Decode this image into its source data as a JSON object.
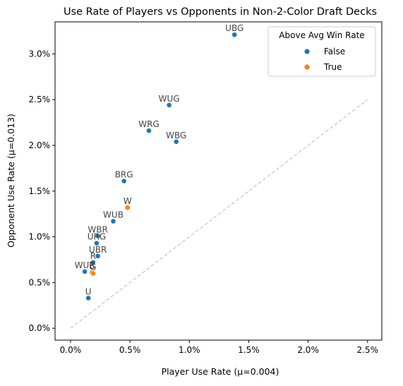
{
  "chart_data": {
    "type": "scatter",
    "title": "Use Rate of Players vs Opponents in Non-2-Color Draft Decks",
    "xlabel": "Player Use Rate (μ=0.004)",
    "ylabel": "Opponent Use Rate (μ=0.013)",
    "xlim": [
      -0.0013,
      0.0262
    ],
    "ylim": [
      -0.0013,
      0.0335
    ],
    "x_ticks": [
      0.0,
      0.005,
      0.01,
      0.015,
      0.02,
      0.025
    ],
    "x_tick_labels": [
      "0.0%",
      "0.5%",
      "1.0%",
      "1.5%",
      "2.0%",
      "2.5%"
    ],
    "y_ticks": [
      0.0,
      0.005,
      0.01,
      0.015,
      0.02,
      0.025,
      0.03
    ],
    "y_tick_labels": [
      "0.0%",
      "0.5%",
      "1.0%",
      "1.5%",
      "2.0%",
      "2.5%",
      "3.0%"
    ],
    "reference_line": {
      "x": [
        0.0,
        0.025
      ],
      "y": [
        0.0,
        0.025
      ],
      "style": "dashed",
      "color": "#bbbbbb"
    },
    "legend": {
      "title": "Above Avg Win Rate",
      "placement": "top-right",
      "entries": [
        {
          "label": "False",
          "color": "#1f77b4"
        },
        {
          "label": "True",
          "color": "#ff7f0e"
        }
      ]
    },
    "points": [
      {
        "label": "UBG",
        "x": 0.0138,
        "y": 0.0321,
        "above_avg": false
      },
      {
        "label": "WUG",
        "x": 0.0083,
        "y": 0.0244,
        "above_avg": false
      },
      {
        "label": "WRG",
        "x": 0.0066,
        "y": 0.0216,
        "above_avg": false
      },
      {
        "label": "WBG",
        "x": 0.0089,
        "y": 0.0204,
        "above_avg": false
      },
      {
        "label": "BRG",
        "x": 0.0045,
        "y": 0.0161,
        "above_avg": false
      },
      {
        "label": "W",
        "x": 0.0048,
        "y": 0.0132,
        "above_avg": true
      },
      {
        "label": "WUB",
        "x": 0.0036,
        "y": 0.0117,
        "above_avg": false
      },
      {
        "label": "WBR",
        "x": 0.0023,
        "y": 0.0101,
        "above_avg": false
      },
      {
        "label": "URG",
        "x": 0.0022,
        "y": 0.0093,
        "above_avg": false
      },
      {
        "label": "UBR",
        "x": 0.0023,
        "y": 0.0079,
        "above_avg": false
      },
      {
        "label": "R",
        "x": 0.0019,
        "y": 0.0072,
        "above_avg": false
      },
      {
        "label": "WUR",
        "x": 0.0012,
        "y": 0.0062,
        "above_avg": false
      },
      {
        "label": "B",
        "x": 0.0018,
        "y": 0.0061,
        "above_avg": true
      },
      {
        "label": "G",
        "x": 0.0019,
        "y": 0.006,
        "above_avg": true
      },
      {
        "label": "U",
        "x": 0.0015,
        "y": 0.0033,
        "above_avg": false
      }
    ]
  }
}
